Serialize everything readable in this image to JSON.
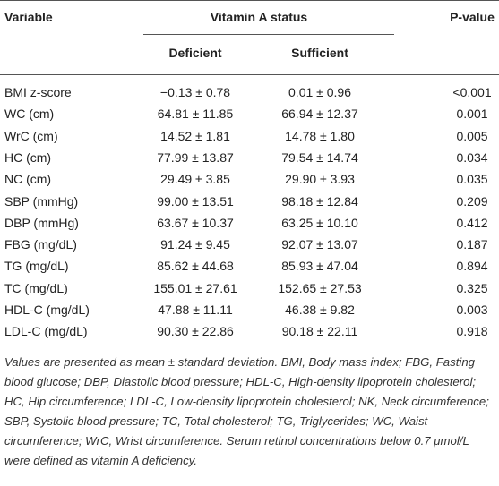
{
  "header": {
    "variable": "Variable",
    "group": "Vitamin A status",
    "deficient": "Deficient",
    "sufficient": "Sufficient",
    "p_value": "P-value"
  },
  "table": {
    "rows": [
      [
        "BMI z-score",
        "−0.13 ± 0.78",
        "0.01 ± 0.96",
        "<0.001"
      ],
      [
        "WC (cm)",
        "64.81 ± 11.85",
        "66.94 ± 12.37",
        "0.001"
      ],
      [
        "WrC (cm)",
        "14.52 ± 1.81",
        "14.78 ± 1.80",
        "0.005"
      ],
      [
        "HC (cm)",
        "77.99 ± 13.87",
        "79.54 ± 14.74",
        "0.034"
      ],
      [
        "NC (cm)",
        "29.49 ± 3.85",
        "29.90 ± 3.93",
        "0.035"
      ],
      [
        "SBP (mmHg)",
        "99.00 ± 13.51",
        "98.18 ± 12.84",
        "0.209"
      ],
      [
        "DBP (mmHg)",
        "63.67 ± 10.37",
        "63.25 ± 10.10",
        "0.412"
      ],
      [
        "FBG (mg/dL)",
        "91.24 ± 9.45",
        "92.07 ± 13.07",
        "0.187"
      ],
      [
        "TG (mg/dL)",
        "85.62 ± 44.68",
        "85.93 ± 47.04",
        "0.894"
      ],
      [
        "TC (mg/dL)",
        "155.01 ± 27.61",
        "152.65 ± 27.53",
        "0.325"
      ],
      [
        "HDL-C (mg/dL)",
        "47.88 ± 11.11",
        "46.38 ± 9.82",
        "0.003"
      ],
      [
        "LDL-C (mg/dL)",
        "90.30 ± 22.86",
        "90.18 ± 22.11",
        "0.918"
      ]
    ]
  },
  "footnote": "Values are presented as mean ± standard deviation. BMI, Body mass index; FBG, Fasting blood glucose; DBP, Diastolic blood pressure; HDL-C, High-density lipoprotein cholesterol; HC, Hip circumference; LDL-C, Low-density lipoprotein cholesterol; NK, Neck circumference; SBP, Systolic blood pressure; TC, Total cholesterol; TG, Triglycerides; WC, Waist circumference; WrC, Wrist circumference. Serum retinol concentrations below 0.7 μmol/L were defined as vitamin A deficiency."
}
